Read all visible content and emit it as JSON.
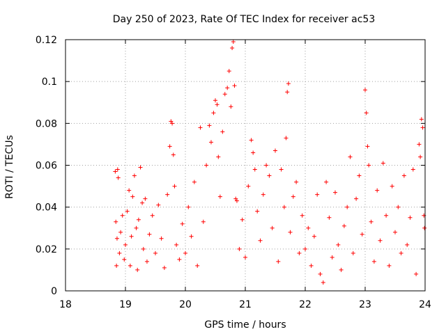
{
  "chart_data": {
    "type": "scatter",
    "title": "Day 250 of 2023, Rate Of TEC Index for receiver ac53",
    "xlabel": "GPS time / hours",
    "ylabel": "ROTI / TECUs",
    "xlim": [
      18,
      24
    ],
    "ylim": [
      0,
      0.12
    ],
    "grid": true,
    "x_ticks": [
      18,
      19,
      20,
      21,
      22,
      23,
      24
    ],
    "x_tick_labels": [
      "18",
      "19",
      "20",
      "21",
      "22",
      "23",
      "24"
    ],
    "y_ticks": [
      0,
      0.02,
      0.04,
      0.06,
      0.08,
      0.1,
      0.12
    ],
    "y_tick_labels": [
      "0",
      "0.02",
      "0.04",
      "0.06",
      "0.08",
      "0.1",
      "0.12"
    ],
    "marker": "plus",
    "marker_color": "#ff0000",
    "series": [
      {
        "name": "ROTI",
        "x": [
          18.83,
          18.84,
          18.85,
          18.86,
          18.87,
          18.88,
          18.9,
          18.92,
          18.95,
          18.98,
          19.0,
          19.03,
          19.06,
          19.08,
          19.1,
          19.12,
          19.15,
          19.18,
          19.2,
          19.22,
          19.25,
          19.28,
          19.3,
          19.33,
          19.36,
          19.4,
          19.45,
          19.5,
          19.55,
          19.6,
          19.65,
          19.7,
          19.74,
          19.76,
          19.78,
          19.8,
          19.82,
          19.85,
          19.9,
          19.95,
          20.0,
          20.05,
          20.1,
          20.15,
          20.2,
          20.25,
          20.3,
          20.35,
          20.4,
          20.43,
          20.47,
          20.5,
          20.53,
          20.55,
          20.58,
          20.62,
          20.66,
          20.7,
          20.73,
          20.76,
          20.78,
          20.8,
          20.82,
          20.84,
          20.86,
          20.9,
          20.95,
          21.0,
          21.05,
          21.1,
          21.13,
          21.16,
          21.2,
          21.25,
          21.3,
          21.35,
          21.4,
          21.45,
          21.5,
          21.55,
          21.6,
          21.65,
          21.68,
          21.7,
          21.72,
          21.75,
          21.8,
          21.85,
          21.9,
          21.95,
          22.0,
          22.05,
          22.1,
          22.15,
          22.2,
          22.25,
          22.3,
          22.35,
          22.4,
          22.45,
          22.5,
          22.55,
          22.6,
          22.65,
          22.7,
          22.75,
          22.8,
          22.85,
          22.9,
          22.95,
          23.0,
          23.02,
          23.04,
          23.06,
          23.1,
          23.15,
          23.2,
          23.25,
          23.3,
          23.35,
          23.4,
          23.45,
          23.5,
          23.55,
          23.6,
          23.65,
          23.7,
          23.75,
          23.8,
          23.85,
          23.9,
          23.92,
          23.94,
          23.96,
          23.98,
          23.99
        ],
        "y": [
          0.057,
          0.033,
          0.012,
          0.025,
          0.058,
          0.054,
          0.018,
          0.028,
          0.036,
          0.015,
          0.022,
          0.038,
          0.048,
          0.012,
          0.026,
          0.045,
          0.055,
          0.03,
          0.01,
          0.034,
          0.059,
          0.042,
          0.02,
          0.044,
          0.014,
          0.027,
          0.036,
          0.018,
          0.041,
          0.025,
          0.011,
          0.046,
          0.069,
          0.081,
          0.08,
          0.065,
          0.05,
          0.022,
          0.015,
          0.032,
          0.018,
          0.04,
          0.026,
          0.052,
          0.012,
          0.078,
          0.033,
          0.06,
          0.079,
          0.071,
          0.085,
          0.091,
          0.089,
          0.064,
          0.045,
          0.076,
          0.094,
          0.097,
          0.105,
          0.088,
          0.116,
          0.119,
          0.098,
          0.044,
          0.043,
          0.02,
          0.034,
          0.016,
          0.05,
          0.072,
          0.066,
          0.058,
          0.038,
          0.024,
          0.046,
          0.06,
          0.055,
          0.03,
          0.067,
          0.014,
          0.058,
          0.04,
          0.073,
          0.095,
          0.099,
          0.028,
          0.045,
          0.052,
          0.018,
          0.036,
          0.02,
          0.03,
          0.012,
          0.026,
          0.046,
          0.008,
          0.004,
          0.052,
          0.035,
          0.016,
          0.047,
          0.022,
          0.01,
          0.031,
          0.04,
          0.064,
          0.018,
          0.044,
          0.055,
          0.027,
          0.096,
          0.085,
          0.069,
          0.06,
          0.033,
          0.014,
          0.048,
          0.024,
          0.061,
          0.036,
          0.012,
          0.05,
          0.028,
          0.04,
          0.018,
          0.055,
          0.022,
          0.035,
          0.058,
          0.008,
          0.07,
          0.064,
          0.082,
          0.078,
          0.036,
          0.03
        ]
      }
    ]
  }
}
